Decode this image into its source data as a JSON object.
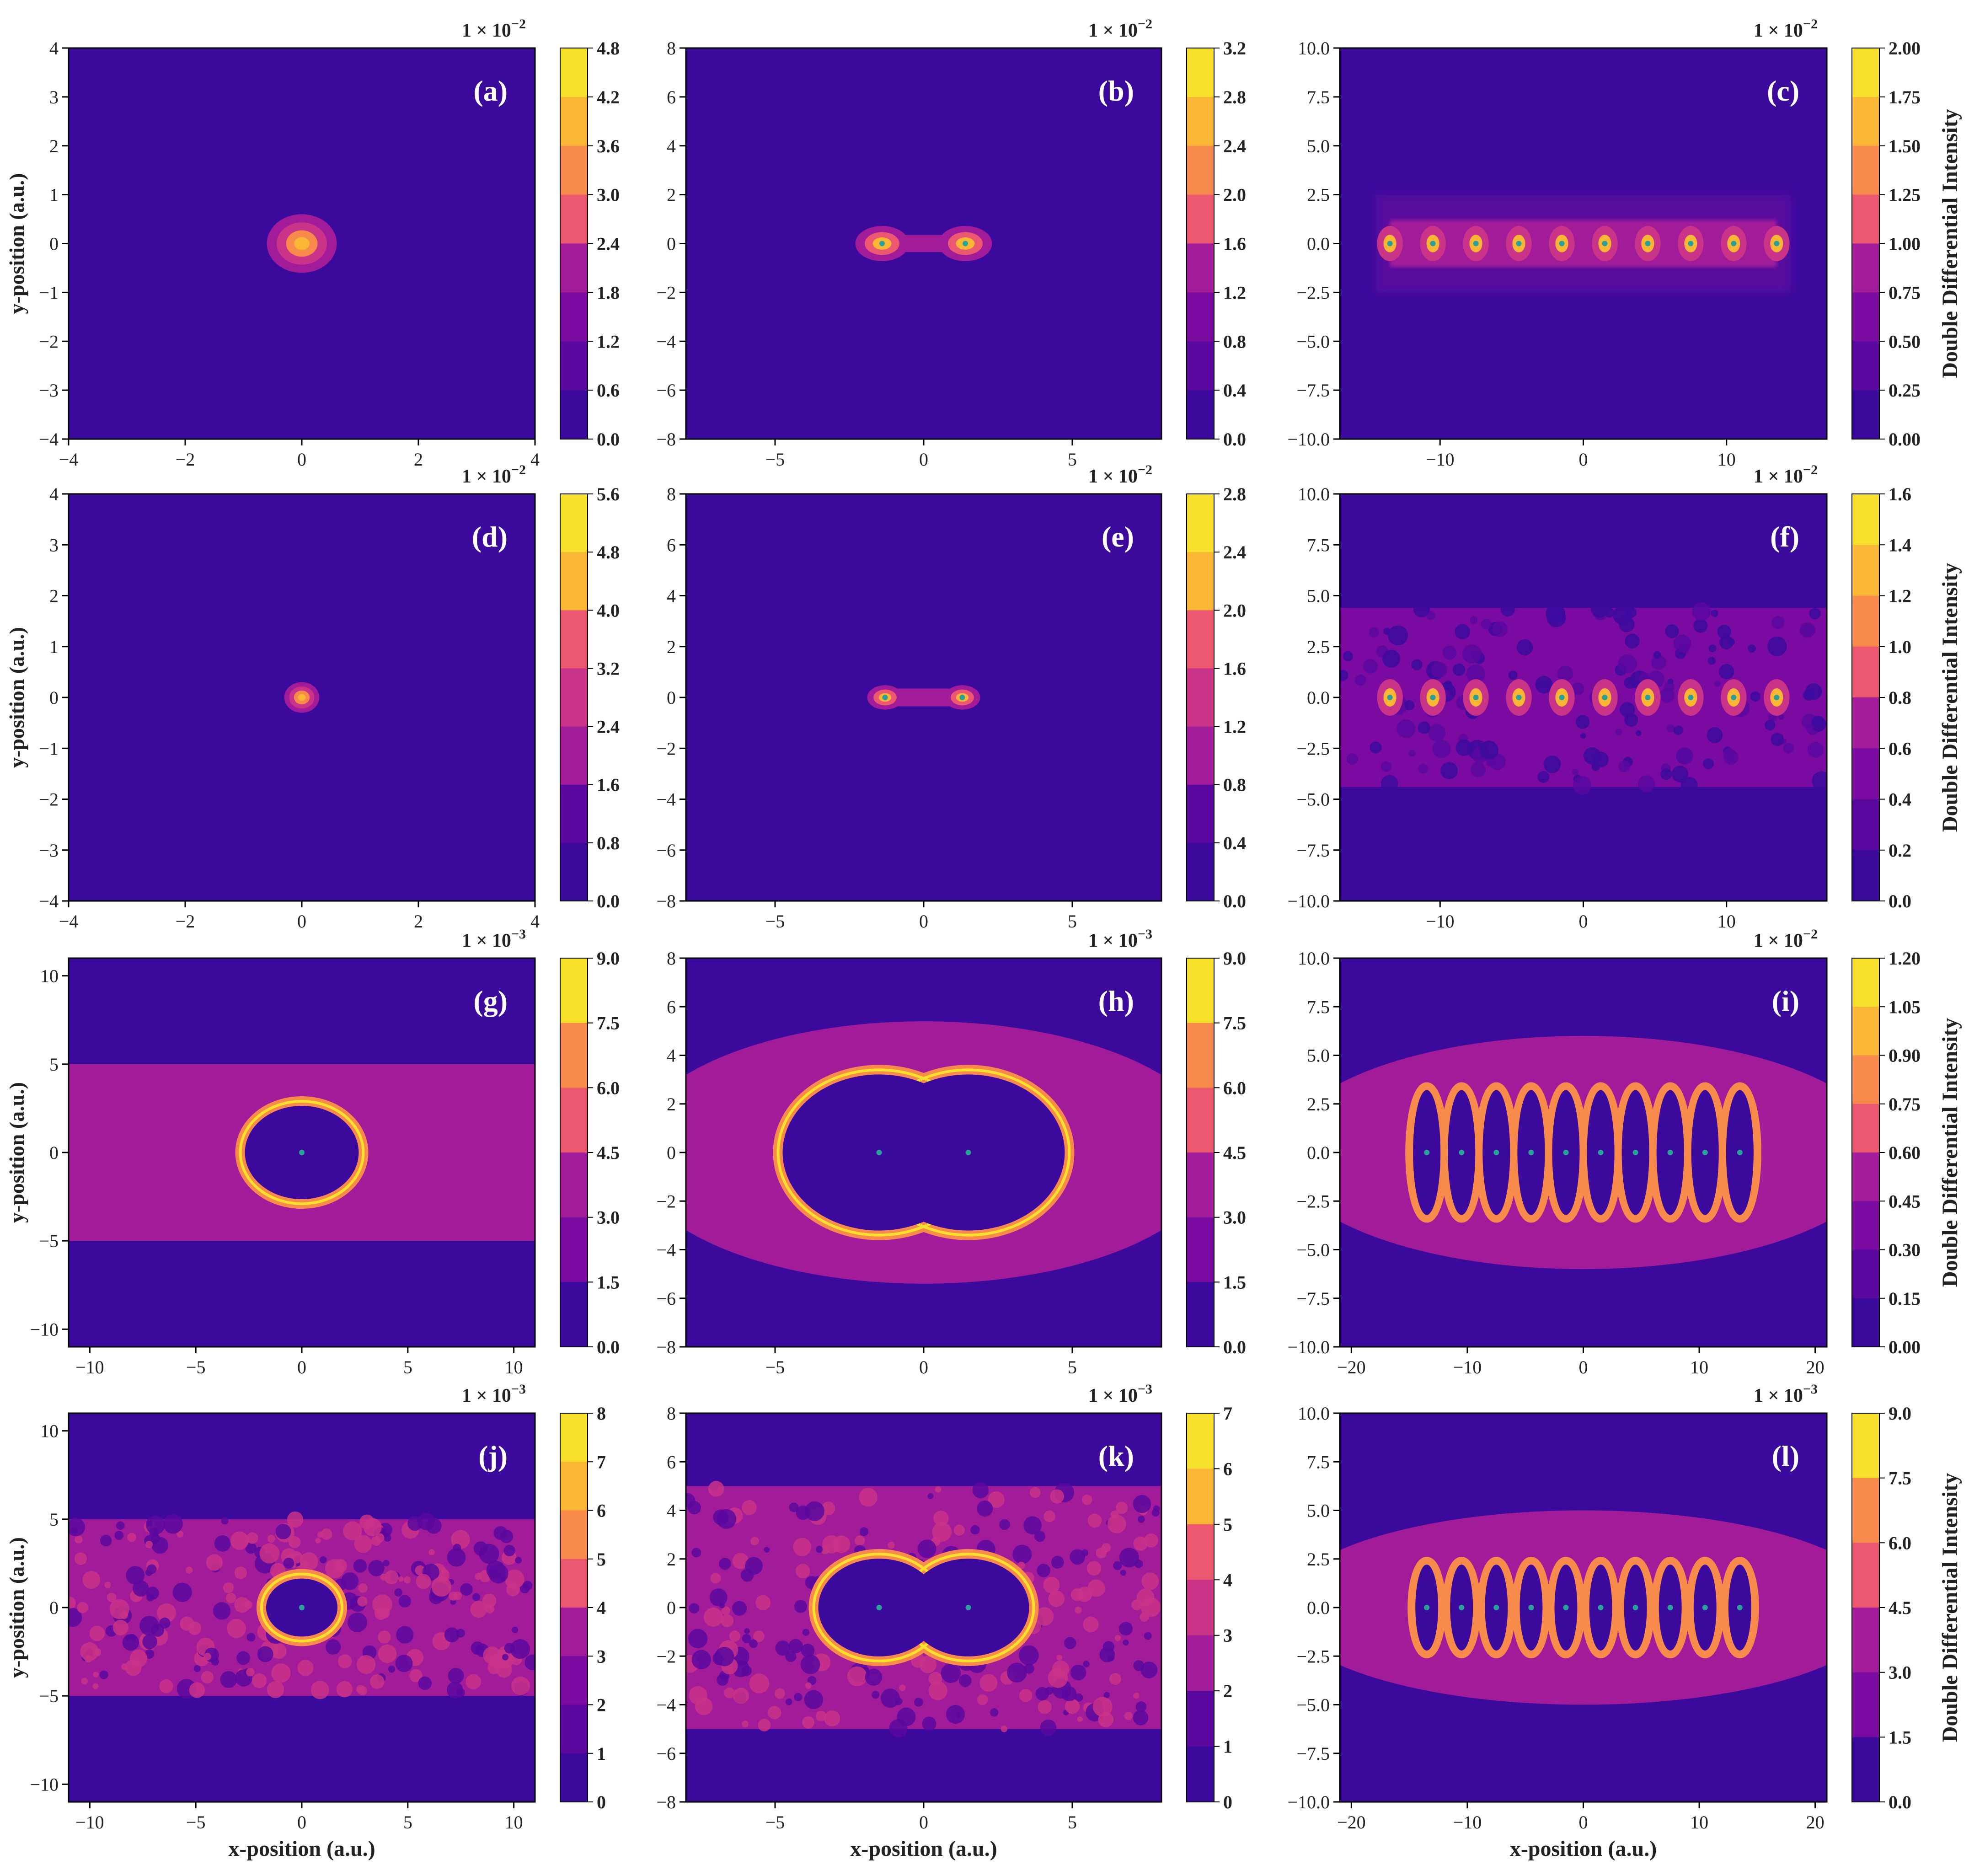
{
  "figure": {
    "xlabel": "x-position (a.u.)",
    "ylabel": "y-position (a.u.)",
    "colorbar_label": "Double Differential Intensity"
  },
  "chart_data": [
    {
      "type": "heatmap",
      "id": "a",
      "panel_label": "(a)",
      "xlim": [
        -4,
        4
      ],
      "ylim": [
        -4,
        4
      ],
      "xticks": [
        "−4",
        "−2",
        "0",
        "2",
        "4"
      ],
      "yticks": [
        "4",
        "3",
        "2",
        "1",
        "0",
        "−1",
        "−2",
        "−3",
        "−4"
      ],
      "xtick_values": [
        -4,
        -2,
        0,
        2,
        4
      ],
      "ytick_values": [
        4,
        3,
        2,
        1,
        0,
        -1,
        -2,
        -3,
        -4
      ],
      "cbar_scale": "1 × 10",
      "cbar_exp": "−2",
      "cbar_ticks": [
        "4.8",
        "4.2",
        "3.6",
        "3.0",
        "2.4",
        "1.8",
        "1.2",
        "0.6",
        "0.0"
      ],
      "structure": "spot",
      "centers": [
        [
          0,
          0
        ]
      ],
      "halo_radius": 0.6,
      "show_xlabel": false,
      "show_ylabel": true,
      "show_cbar_label": false
    },
    {
      "type": "heatmap",
      "id": "b",
      "panel_label": "(b)",
      "xlim": [
        -8,
        8
      ],
      "ylim": [
        -8,
        8
      ],
      "xticks": [
        "−5",
        "0",
        "5"
      ],
      "yticks": [
        "8",
        "6",
        "4",
        "2",
        "0",
        "−2",
        "−4",
        "−6",
        "−8"
      ],
      "xtick_values": [
        -5,
        0,
        5
      ],
      "ytick_values": [
        8,
        6,
        4,
        2,
        0,
        -2,
        -4,
        -6,
        -8
      ],
      "cbar_scale": "1 × 10",
      "cbar_exp": "−2",
      "cbar_ticks": [
        "3.2",
        "2.8",
        "2.4",
        "2.0",
        "1.6",
        "1.2",
        "0.8",
        "0.4",
        "0.0"
      ],
      "structure": "dumbbell",
      "centers": [
        [
          -1.4,
          0
        ],
        [
          1.4,
          0
        ]
      ],
      "halo_radius": 0.9,
      "show_xlabel": false,
      "show_ylabel": false,
      "show_cbar_label": false
    },
    {
      "type": "heatmap",
      "id": "c",
      "panel_label": "(c)",
      "xlim": [
        -17,
        17
      ],
      "ylim": [
        -10,
        10
      ],
      "xticks": [
        "−10",
        "0",
        "10"
      ],
      "yticks": [
        "10.0",
        "7.5",
        "5.0",
        "2.5",
        "0.0",
        "−2.5",
        "−5.0",
        "−7.5",
        "−10.0"
      ],
      "xtick_values": [
        -10,
        0,
        10
      ],
      "ytick_values": [
        10,
        7.5,
        5,
        2.5,
        0,
        -2.5,
        -5,
        -7.5,
        -10
      ],
      "cbar_scale": "1 × 10",
      "cbar_exp": "−2",
      "cbar_ticks": [
        "2.00",
        "1.75",
        "1.50",
        "1.25",
        "1.00",
        "0.75",
        "0.50",
        "0.25",
        "0.00"
      ],
      "structure": "chain",
      "centers": [
        [
          -13.5,
          0
        ],
        [
          -10.5,
          0
        ],
        [
          -7.5,
          0
        ],
        [
          -4.5,
          0
        ],
        [
          -1.5,
          0
        ],
        [
          1.5,
          0
        ],
        [
          4.5,
          0
        ],
        [
          7.5,
          0
        ],
        [
          10.5,
          0
        ],
        [
          13.5,
          0
        ]
      ],
      "halo_radius": 3.5,
      "show_xlabel": false,
      "show_ylabel": false,
      "show_cbar_label": true
    },
    {
      "type": "heatmap",
      "id": "d",
      "panel_label": "(d)",
      "xlim": [
        -4,
        4
      ],
      "ylim": [
        -4,
        4
      ],
      "xticks": [
        "−4",
        "−2",
        "0",
        "2",
        "4"
      ],
      "yticks": [
        "4",
        "3",
        "2",
        "1",
        "0",
        "−1",
        "−2",
        "−3",
        "−4"
      ],
      "xtick_values": [
        -4,
        -2,
        0,
        2,
        4
      ],
      "ytick_values": [
        4,
        3,
        2,
        1,
        0,
        -1,
        -2,
        -3,
        -4
      ],
      "cbar_scale": "1 × 10",
      "cbar_exp": "−2",
      "cbar_ticks": [
        "5.6",
        "4.8",
        "4.0",
        "3.2",
        "2.4",
        "1.6",
        "0.8",
        "0.0"
      ],
      "structure": "spot",
      "centers": [
        [
          0,
          0
        ]
      ],
      "halo_radius": 0.3,
      "show_xlabel": false,
      "show_ylabel": true,
      "show_cbar_label": false
    },
    {
      "type": "heatmap",
      "id": "e",
      "panel_label": "(e)",
      "xlim": [
        -8,
        8
      ],
      "ylim": [
        -8,
        8
      ],
      "xticks": [
        "−5",
        "0",
        "5"
      ],
      "yticks": [
        "8",
        "6",
        "4",
        "2",
        "0",
        "−2",
        "−4",
        "−6",
        "−8"
      ],
      "xtick_values": [
        -5,
        0,
        5
      ],
      "ytick_values": [
        8,
        6,
        4,
        2,
        0,
        -2,
        -4,
        -6,
        -8
      ],
      "cbar_scale": "1 × 10",
      "cbar_exp": "−2",
      "cbar_ticks": [
        "2.8",
        "2.4",
        "2.0",
        "1.6",
        "1.2",
        "0.8",
        "0.4",
        "0.0"
      ],
      "structure": "dumbbell",
      "centers": [
        [
          -1.3,
          0
        ],
        [
          1.3,
          0
        ]
      ],
      "halo_radius": 0.6,
      "show_xlabel": false,
      "show_ylabel": false,
      "show_cbar_label": false
    },
    {
      "type": "heatmap",
      "id": "f",
      "panel_label": "(f)",
      "xlim": [
        -17,
        17
      ],
      "ylim": [
        -10,
        10
      ],
      "xticks": [
        "−10",
        "0",
        "10"
      ],
      "yticks": [
        "10.0",
        "7.5",
        "5.0",
        "2.5",
        "0.0",
        "−2.5",
        "−5.0",
        "−7.5",
        "−10.0"
      ],
      "xtick_values": [
        -10,
        0,
        10
      ],
      "ytick_values": [
        10,
        7.5,
        5,
        2.5,
        0,
        -2.5,
        -5,
        -7.5,
        -10
      ],
      "cbar_scale": "1 × 10",
      "cbar_exp": "−2",
      "cbar_ticks": [
        "1.6",
        "1.4",
        "1.2",
        "1.0",
        "0.8",
        "0.6",
        "0.4",
        "0.2",
        "0.0"
      ],
      "structure": "chain_band",
      "centers": [
        [
          -13.5,
          0
        ],
        [
          -10.5,
          0
        ],
        [
          -7.5,
          0
        ],
        [
          -4.5,
          0
        ],
        [
          -1.5,
          0
        ],
        [
          1.5,
          0
        ],
        [
          4.5,
          0
        ],
        [
          7.5,
          0
        ],
        [
          10.5,
          0
        ],
        [
          13.5,
          0
        ]
      ],
      "halo_radius": 4.4,
      "show_xlabel": false,
      "show_ylabel": false,
      "show_cbar_label": true
    },
    {
      "type": "heatmap",
      "id": "g",
      "panel_label": "(g)",
      "xlim": [
        -11,
        11
      ],
      "ylim": [
        -11,
        11
      ],
      "xticks": [
        "−10",
        "−5",
        "0",
        "5",
        "10"
      ],
      "yticks": [
        "10",
        "5",
        "0",
        "−5",
        "−10"
      ],
      "xtick_values": [
        -10,
        -5,
        0,
        5,
        10
      ],
      "ytick_values": [
        10,
        5,
        0,
        -5,
        -10
      ],
      "cbar_scale": "1 × 10",
      "cbar_exp": "−3",
      "cbar_ticks": [
        "9.0",
        "7.5",
        "6.0",
        "4.5",
        "3.0",
        "1.5",
        "0.0"
      ],
      "structure": "rings",
      "centers": [
        [
          0,
          0
        ]
      ],
      "ring_radius": 2.9,
      "band_half": 5.0,
      "show_xlabel": false,
      "show_ylabel": true,
      "show_cbar_label": false
    },
    {
      "type": "heatmap",
      "id": "h",
      "panel_label": "(h)",
      "xlim": [
        -8,
        8
      ],
      "ylim": [
        -8,
        8
      ],
      "xticks": [
        "−5",
        "0",
        "5"
      ],
      "yticks": [
        "8",
        "6",
        "4",
        "2",
        "0",
        "−2",
        "−4",
        "−6",
        "−8"
      ],
      "xtick_values": [
        -5,
        0,
        5
      ],
      "ytick_values": [
        8,
        6,
        4,
        2,
        0,
        -2,
        -4,
        -6,
        -8
      ],
      "cbar_scale": "1 × 10",
      "cbar_exp": "−3",
      "cbar_ticks": [
        "9.0",
        "7.5",
        "6.0",
        "4.5",
        "3.0",
        "1.5",
        "0.0"
      ],
      "structure": "rings",
      "centers": [
        [
          -1.5,
          0
        ],
        [
          1.5,
          0
        ]
      ],
      "ring_radius": 3.4,
      "band_half": 5.4,
      "show_xlabel": false,
      "show_ylabel": false,
      "show_cbar_label": false
    },
    {
      "type": "heatmap",
      "id": "i",
      "panel_label": "(i)",
      "xlim": [
        -21,
        21
      ],
      "ylim": [
        -10,
        10
      ],
      "xticks": [
        "−20",
        "−10",
        "0",
        "10",
        "20"
      ],
      "yticks": [
        "10.0",
        "7.5",
        "5.0",
        "2.5",
        "0.0",
        "−2.5",
        "−5.0",
        "−7.5",
        "−10.0"
      ],
      "xtick_values": [
        -20,
        -10,
        0,
        10,
        20
      ],
      "ytick_values": [
        10,
        7.5,
        5,
        2.5,
        0,
        -2.5,
        -5,
        -7.5,
        -10
      ],
      "cbar_scale": "1 × 10",
      "cbar_exp": "−2",
      "cbar_ticks": [
        "1.20",
        "1.05",
        "0.90",
        "0.75",
        "0.60",
        "0.45",
        "0.30",
        "0.15",
        "0.00"
      ],
      "structure": "ellipse_chain",
      "centers": [
        [
          -13.5,
          0
        ],
        [
          -10.5,
          0
        ],
        [
          -7.5,
          0
        ],
        [
          -4.5,
          0
        ],
        [
          -1.5,
          0
        ],
        [
          1.5,
          0
        ],
        [
          4.5,
          0
        ],
        [
          7.5,
          0
        ],
        [
          10.5,
          0
        ],
        [
          13.5,
          0
        ]
      ],
      "ring_rx": 1.5,
      "ring_ry": 3.4,
      "band_half": 6.0,
      "show_xlabel": false,
      "show_ylabel": false,
      "show_cbar_label": true
    },
    {
      "type": "heatmap",
      "id": "j",
      "panel_label": "(j)",
      "xlim": [
        -11,
        11
      ],
      "ylim": [
        -11,
        11
      ],
      "xticks": [
        "−10",
        "−5",
        "0",
        "5",
        "10"
      ],
      "yticks": [
        "10",
        "5",
        "0",
        "−5",
        "−10"
      ],
      "xtick_values": [
        -10,
        -5,
        0,
        5,
        10
      ],
      "ytick_values": [
        10,
        5,
        0,
        -5,
        -10
      ],
      "cbar_scale": "1 × 10",
      "cbar_exp": "−3",
      "cbar_ticks": [
        "8",
        "7",
        "6",
        "5",
        "4",
        "3",
        "2",
        "1",
        "0"
      ],
      "structure": "rings_noisy",
      "centers": [
        [
          0,
          0
        ]
      ],
      "ring_radius": 1.9,
      "band_half": 5.0,
      "show_xlabel": true,
      "show_ylabel": true,
      "show_cbar_label": false
    },
    {
      "type": "heatmap",
      "id": "k",
      "panel_label": "(k)",
      "xlim": [
        -8,
        8
      ],
      "ylim": [
        -8,
        8
      ],
      "xticks": [
        "−5",
        "0",
        "5"
      ],
      "yticks": [
        "8",
        "6",
        "4",
        "2",
        "0",
        "−2",
        "−4",
        "−6",
        "−8"
      ],
      "xtick_values": [
        -5,
        0,
        5
      ],
      "ytick_values": [
        8,
        6,
        4,
        2,
        0,
        -2,
        -4,
        -6,
        -8
      ],
      "cbar_scale": "1 × 10",
      "cbar_exp": "−3",
      "cbar_ticks": [
        "7",
        "6",
        "5",
        "4",
        "3",
        "2",
        "1",
        "0"
      ],
      "structure": "rings_noisy",
      "centers": [
        [
          -1.5,
          0
        ],
        [
          1.5,
          0
        ]
      ],
      "ring_radius": 2.2,
      "band_half": 5.0,
      "show_xlabel": true,
      "show_ylabel": false,
      "show_cbar_label": false
    },
    {
      "type": "heatmap",
      "id": "l",
      "panel_label": "(l)",
      "xlim": [
        -21,
        21
      ],
      "ylim": [
        -10,
        10
      ],
      "xticks": [
        "−20",
        "−10",
        "0",
        "10",
        "20"
      ],
      "yticks": [
        "10.0",
        "7.5",
        "5.0",
        "2.5",
        "0.0",
        "−2.5",
        "−5.0",
        "−7.5",
        "−10.0"
      ],
      "xtick_values": [
        -20,
        -10,
        0,
        10,
        20
      ],
      "ytick_values": [
        10,
        7.5,
        5,
        2.5,
        0,
        -2.5,
        -5,
        -7.5,
        -10
      ],
      "cbar_scale": "1 × 10",
      "cbar_exp": "−3",
      "cbar_ticks": [
        "9.0",
        "7.5",
        "6.0",
        "4.5",
        "3.0",
        "1.5",
        "0.0"
      ],
      "structure": "ellipse_chain",
      "centers": [
        [
          -13.5,
          0
        ],
        [
          -10.5,
          0
        ],
        [
          -7.5,
          0
        ],
        [
          -4.5,
          0
        ],
        [
          -1.5,
          0
        ],
        [
          1.5,
          0
        ],
        [
          4.5,
          0
        ],
        [
          7.5,
          0
        ],
        [
          10.5,
          0
        ],
        [
          13.5,
          0
        ]
      ],
      "ring_rx": 1.3,
      "ring_ry": 2.4,
      "band_half": 5.0,
      "show_xlabel": true,
      "show_ylabel": false,
      "show_cbar_label": true
    }
  ]
}
